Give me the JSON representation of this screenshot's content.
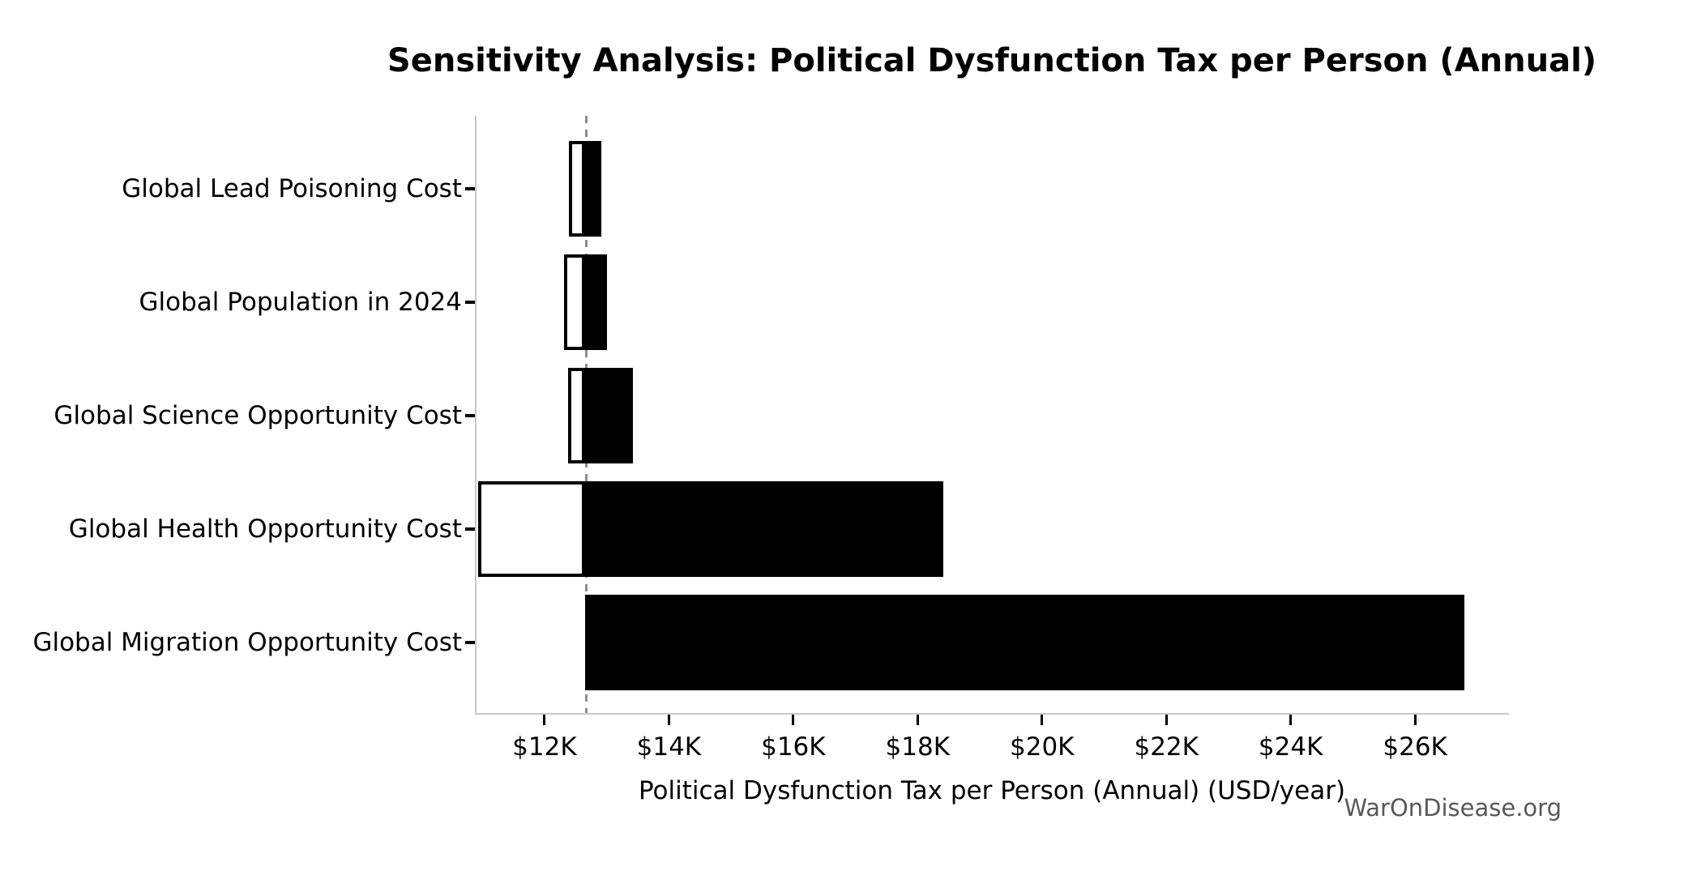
{
  "figure": {
    "watermark": "WarOnDisease.org"
  },
  "chart_data": {
    "type": "bar",
    "subtype": "tornado-sensitivity",
    "orientation": "horizontal",
    "title": "Sensitivity Analysis: Political Dysfunction Tax per Person (Annual)",
    "xlabel": "Political Dysfunction Tax per Person (Annual) (USD/year)",
    "ylabel": "",
    "categories": [
      "Global Lead Poisoning Cost",
      "Global Population in 2024",
      "Global Science Opportunity Cost",
      "Global Health Opportunity Cost",
      "Global Migration Opportunity Cost"
    ],
    "baseline_usd_per_year": 12650,
    "bars": [
      {
        "label": "Global Lead Poisoning Cost",
        "low": 12390,
        "high": 12910
      },
      {
        "label": "Global Population in 2024",
        "low": 12310,
        "high": 13010
      },
      {
        "label": "Global Science Opportunity Cost",
        "low": 12380,
        "high": 13420
      },
      {
        "label": "Global Health Opportunity Cost",
        "low": 10930,
        "high": 18410
      },
      {
        "label": "Global Migration Opportunity Cost",
        "low": null,
        "high": 26790
      }
    ],
    "xticks": [
      {
        "value": 12000,
        "label": "$12K"
      },
      {
        "value": 14000,
        "label": "$14K"
      },
      {
        "value": 16000,
        "label": "$16K"
      },
      {
        "value": 18000,
        "label": "$18K"
      },
      {
        "value": 20000,
        "label": "$20K"
      },
      {
        "value": 22000,
        "label": "$22K"
      },
      {
        "value": 24000,
        "label": "$24K"
      },
      {
        "value": 26000,
        "label": "$26K"
      }
    ],
    "xlim": [
      10880,
      27510
    ],
    "grid": false,
    "legend": null,
    "styles": {
      "high_fill": "#000000",
      "low_fill": "#ffffff",
      "low_edge": "#000000",
      "baseline_color": "#8c8c8c",
      "spine_color": "#c9c9c9",
      "tick_color": "#000000",
      "watermark_color": "#595959"
    }
  }
}
